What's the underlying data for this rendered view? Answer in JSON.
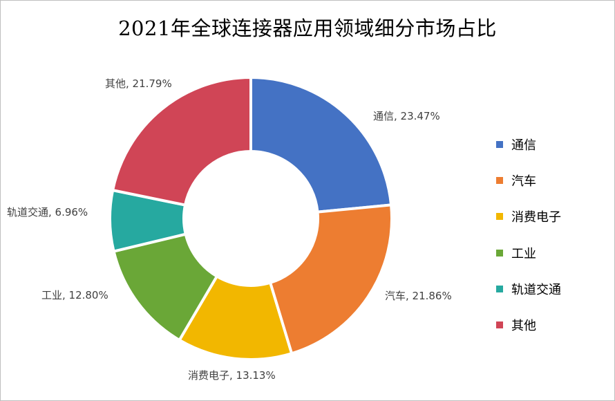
{
  "chart_data": {
    "type": "pie",
    "variant": "doughnut",
    "title": "2021年全球连接器应用领域细分市场占比",
    "categories": [
      "通信",
      "汽车",
      "消费电子",
      "工业",
      "轨道交通",
      "其他"
    ],
    "values": [
      23.47,
      21.86,
      13.13,
      12.8,
      6.96,
      21.79
    ],
    "labels": [
      "通信, 23.47%",
      "汽车, 21.86%",
      "消费电子, 13.13%",
      "工业, 12.80%",
      "轨道交通, 6.96%",
      "其他, 21.79%"
    ],
    "colors": [
      "#4472C4",
      "#ED7D31",
      "#F2B700",
      "#6AA737",
      "#26A9A0",
      "#D04556"
    ],
    "legend_position": "right"
  }
}
